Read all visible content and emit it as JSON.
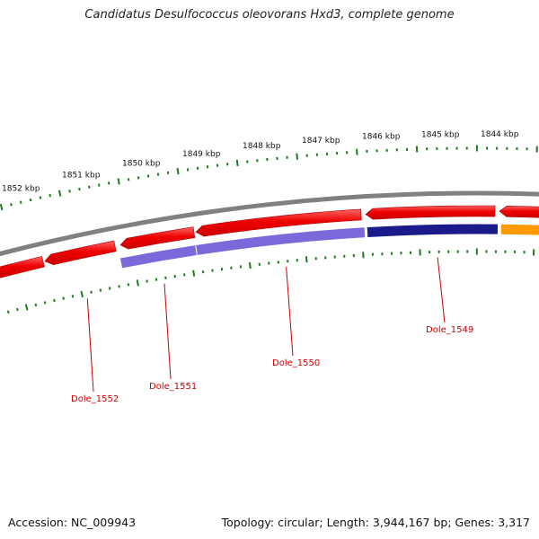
{
  "title": "Candidatus Desulfococcus oleovorans Hxd3, complete genome",
  "accession_text": "Accession: NC_009943",
  "topology_text": "Topology: circular; Length: 3,944,167 bp; Genes: 3,317",
  "scale_labels": [
    "1852 kbp",
    "1851 kbp",
    "1850 kbp",
    "1849 kbp",
    "1848 kbp",
    "1847 kbp",
    "1846 kbp",
    "1845 kbp",
    "1844 kbp"
  ],
  "gene_labels": [
    "Dole_1552",
    "Dole_1551",
    "Dole_1550",
    "Dole_1549"
  ],
  "colors": {
    "backbone": "#808080",
    "cds": "#ee1111",
    "cog_blue": "#7b68d9",
    "cog_navy": "#1a1a8a",
    "cog_orange": "#ff9900",
    "tick": "#1e7a1e",
    "gene_label": "#cc0000"
  }
}
